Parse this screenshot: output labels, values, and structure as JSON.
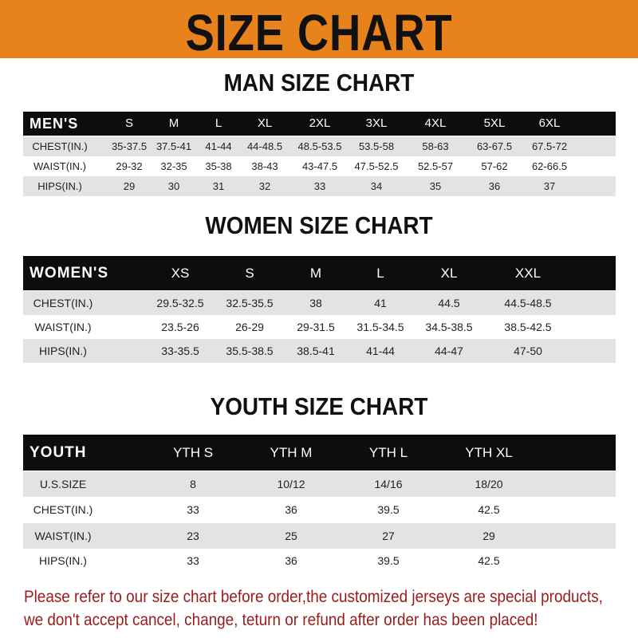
{
  "banner": {
    "title": "SIZE CHART",
    "color": "#e8821c"
  },
  "men": {
    "title": "MAN SIZE CHART",
    "header_label": "MEN'S",
    "sizes": [
      "S",
      "M",
      "L",
      "XL",
      "2XL",
      "3XL",
      "4XL",
      "5XL",
      "6XL"
    ],
    "rows": [
      {
        "label": "CHEST(IN.)",
        "values": [
          "35-37.5",
          "37.5-41",
          "41-44",
          "44-48.5",
          "48.5-53.5",
          "53.5-58",
          "58-63",
          "63-67.5",
          "67.5-72"
        ]
      },
      {
        "label": "WAIST(IN.)",
        "values": [
          "29-32",
          "32-35",
          "35-38",
          "38-43",
          "43-47.5",
          "47.5-52.5",
          "52.5-57",
          "57-62",
          "62-66.5"
        ]
      },
      {
        "label": "HIPS(IN.)",
        "values": [
          "29",
          "30",
          "31",
          "32",
          "33",
          "34",
          "35",
          "36",
          "37"
        ]
      }
    ]
  },
  "women": {
    "title": "WOMEN SIZE CHART",
    "header_label": "WOMEN'S",
    "sizes": [
      "XS",
      "S",
      "M",
      "L",
      "XL",
      "XXL"
    ],
    "rows": [
      {
        "label": "CHEST(IN.)",
        "values": [
          "29.5-32.5",
          "32.5-35.5",
          "38",
          "41",
          "44.5",
          "44.5-48.5"
        ]
      },
      {
        "label": "WAIST(IN.)",
        "values": [
          "23.5-26",
          "26-29",
          "29-31.5",
          "31.5-34.5",
          "34.5-38.5",
          "38.5-42.5"
        ]
      },
      {
        "label": "HIPS(IN.)",
        "values": [
          "33-35.5",
          "35.5-38.5",
          "38.5-41",
          "41-44",
          "44-47",
          "47-50"
        ]
      }
    ]
  },
  "youth": {
    "title": "YOUTH SIZE CHART",
    "header_label": "YOUTH",
    "sizes": [
      "YTH S",
      "YTH M",
      "YTH L",
      "YTH XL"
    ],
    "rows": [
      {
        "label": "U.S.SIZE",
        "values": [
          "8",
          "10/12",
          "14/16",
          "18/20"
        ]
      },
      {
        "label": "CHEST(IN.)",
        "values": [
          "33",
          "36",
          "39.5",
          "42.5"
        ]
      },
      {
        "label": "WAIST(IN.)",
        "values": [
          "23",
          "25",
          "27",
          "29"
        ]
      },
      {
        "label": "HIPS(IN.)",
        "values": [
          "33",
          "36",
          "39.5",
          "42.5"
        ]
      }
    ]
  },
  "notice": {
    "line1": "Please refer to our size chart before order,the customized jerseys are special products,",
    "line2": "we don't accept cancel, change, teturn or refund after order has been placed!"
  }
}
